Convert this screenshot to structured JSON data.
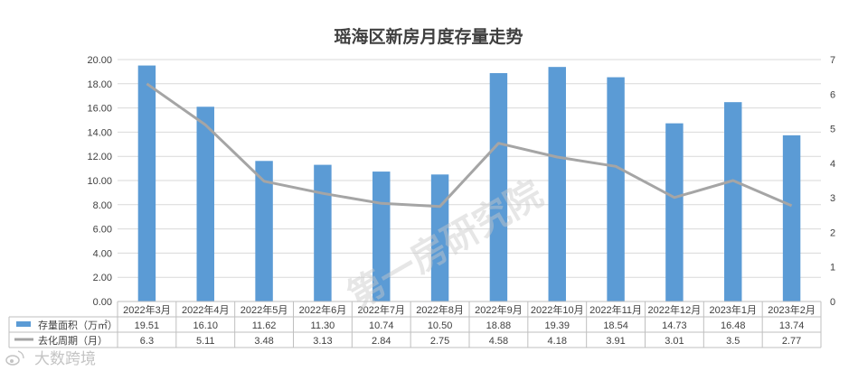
{
  "chart_data": {
    "type": "bar+line",
    "title": "瑶海区新房月度存量走势",
    "categories": [
      "2022年3月",
      "2022年4月",
      "2022年5月",
      "2022年6月",
      "2022年7月",
      "2022年8月",
      "2022年9月",
      "2022年10月",
      "2022年11月",
      "2022年12月",
      "2023年1月",
      "2023年2月"
    ],
    "series": [
      {
        "name": "存量面积（万㎡）",
        "type": "bar",
        "axis": "left",
        "color": "#5b9bd5",
        "values": [
          19.51,
          16.1,
          11.62,
          11.3,
          10.74,
          10.5,
          18.88,
          19.39,
          18.54,
          14.73,
          16.48,
          13.74
        ],
        "labels": [
          "19.51",
          "16.10",
          "11.62",
          "11.30",
          "10.74",
          "10.50",
          "18.88",
          "19.39",
          "18.54",
          "14.73",
          "16.48",
          "13.74"
        ]
      },
      {
        "name": "去化周期（月）",
        "type": "line",
        "axis": "right",
        "color": "#a5a5a5",
        "values": [
          6.3,
          5.11,
          3.48,
          3.13,
          2.84,
          2.75,
          4.58,
          4.18,
          3.91,
          3.01,
          3.5,
          2.77
        ],
        "labels": [
          "6.3",
          "5.11",
          "3.48",
          "3.13",
          "2.84",
          "2.75",
          "4.58",
          "4.18",
          "3.91",
          "3.01",
          "3.5",
          "2.77"
        ]
      }
    ],
    "y_left": {
      "min": 0,
      "max": 20,
      "step": 2,
      "ticks": [
        "0.00",
        "2.00",
        "4.00",
        "6.00",
        "8.00",
        "10.00",
        "12.00",
        "14.00",
        "16.00",
        "18.00",
        "20.00"
      ]
    },
    "y_right": {
      "min": 0,
      "max": 7,
      "step": 1,
      "ticks": [
        "0",
        "1",
        "2",
        "3",
        "4",
        "5",
        "6",
        "7"
      ]
    },
    "grid": true,
    "legend": "data-table"
  },
  "watermark": "第一房研究院",
  "logo": {
    "icon": "weibo-style-icon",
    "text": "大数跨境"
  }
}
